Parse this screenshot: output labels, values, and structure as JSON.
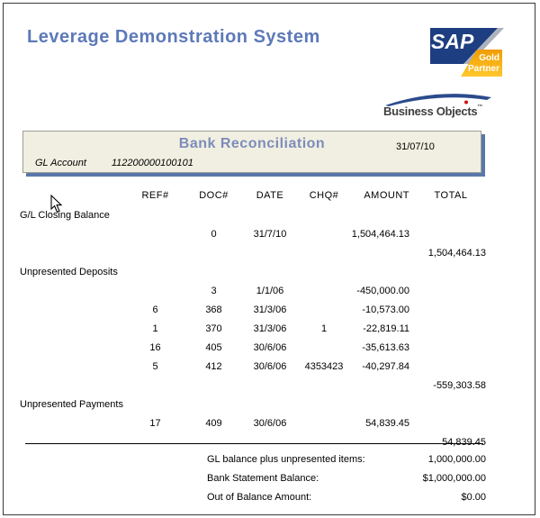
{
  "page": {
    "title": "Leverage Demonstration System"
  },
  "logos": {
    "sap": {
      "text": "SAP",
      "badge_line1": "Gold",
      "badge_line2": "Partner"
    },
    "business_objects": {
      "text": "Business Objects",
      "trademark": "™"
    }
  },
  "report_header": {
    "title": "Bank Reconciliation",
    "date": "31/07/10",
    "gl_account_label": "GL Account",
    "gl_account_value": "112200000100101"
  },
  "table": {
    "columns": [
      "REF#",
      "DOC#",
      "DATE",
      "CHQ#",
      "AMOUNT",
      "TOTAL"
    ],
    "rows": [
      {
        "type": "section",
        "label": "G/L Closing Balance"
      },
      {
        "type": "data",
        "ref": "",
        "doc": "0",
        "date": "31/7/10",
        "chq": "",
        "amount": "1,504,464.13",
        "total": ""
      },
      {
        "type": "total",
        "label": "",
        "total": "1,504,464.13"
      },
      {
        "type": "section",
        "label": "Unpresented Deposits"
      },
      {
        "type": "data",
        "ref": "",
        "doc": "3",
        "date": "1/1/06",
        "chq": "",
        "amount": "-450,000.00",
        "total": ""
      },
      {
        "type": "data",
        "ref": "6",
        "doc": "368",
        "date": "31/3/06",
        "chq": "",
        "amount": "-10,573.00",
        "total": ""
      },
      {
        "type": "data",
        "ref": "1",
        "doc": "370",
        "date": "31/3/06",
        "chq": "1",
        "amount": "-22,819.11",
        "total": ""
      },
      {
        "type": "data",
        "ref": "16",
        "doc": "405",
        "date": "30/6/06",
        "chq": "",
        "amount": "-35,613.63",
        "total": ""
      },
      {
        "type": "data",
        "ref": "5",
        "doc": "412",
        "date": "30/6/06",
        "chq": "4353423",
        "amount": "-40,297.84",
        "total": ""
      },
      {
        "type": "total",
        "label": "",
        "total": "-559,303.58"
      },
      {
        "type": "section",
        "label": "Unpresented Payments"
      },
      {
        "type": "data",
        "ref": "17",
        "doc": "409",
        "date": "30/6/06",
        "chq": "",
        "amount": "54,839.45",
        "total": ""
      },
      {
        "type": "total",
        "label": "",
        "total": "54,839.45"
      }
    ]
  },
  "summary": {
    "items": [
      {
        "label": "GL balance plus unpresented items:",
        "value": "1,000,000.00"
      },
      {
        "label": "Bank Statement Balance:",
        "value": "$1,000,000.00"
      },
      {
        "label": "Out of Balance Amount:",
        "value": "$0.00"
      }
    ]
  },
  "colors": {
    "title_blue": "#5d79b9",
    "heading_blue": "#7e8cba",
    "box_bg": "#f0efe1",
    "box_shadow": "#5a77ab",
    "sap_blue": "#1d3e80",
    "gold_dark": "#f09c00",
    "gold_light": "#ffc72e",
    "swoosh_blue": "#2b4b8c",
    "logo_dot_red": "#cc1111"
  }
}
